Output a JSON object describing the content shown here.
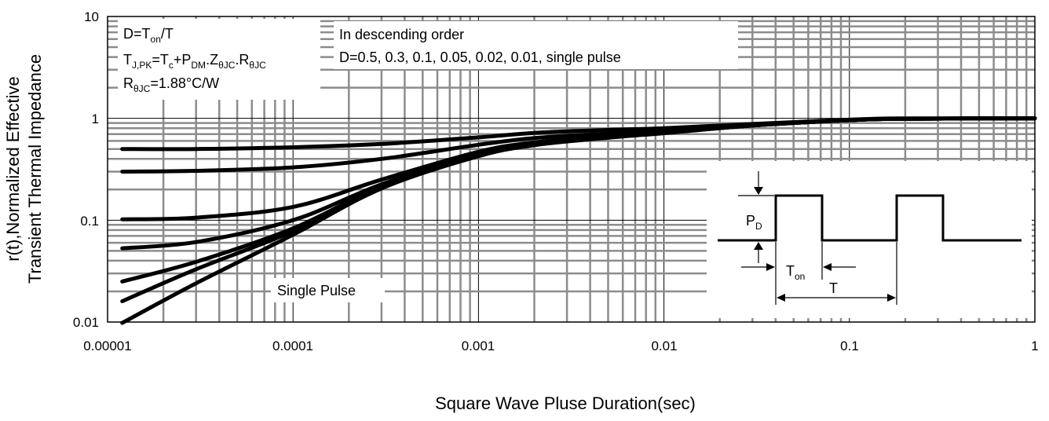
{
  "chart_data": {
    "type": "line",
    "x_scale": "log",
    "y_scale": "log",
    "xlim": [
      1e-05,
      1
    ],
    "ylim": [
      0.01,
      10
    ],
    "x_ticks": [
      "0.00001",
      "0.0001",
      "0.001",
      "0.01",
      "0.1",
      "1"
    ],
    "y_ticks": [
      "0.01",
      "0.1",
      "1",
      "10"
    ],
    "xlabel": "Square Wave Pluse Duration(sec)",
    "ylabel_line1": "r(t),Normalized Effective",
    "ylabel_line2": "Transient Thermal Impedance",
    "grid": true,
    "series": [
      {
        "duty": 0.5,
        "points": [
          [
            1.2e-05,
            0.5
          ],
          [
            3e-05,
            0.5
          ],
          [
            0.0001,
            0.52
          ],
          [
            0.0003,
            0.56
          ],
          [
            0.001,
            0.65
          ],
          [
            0.002,
            0.72
          ],
          [
            0.005,
            0.77
          ],
          [
            0.01,
            0.8
          ],
          [
            0.03,
            0.88
          ],
          [
            0.1,
            0.97
          ],
          [
            0.2,
            1.0
          ],
          [
            1,
            1.0
          ]
        ]
      },
      {
        "duty": 0.3,
        "points": [
          [
            1.2e-05,
            0.3
          ],
          [
            3e-05,
            0.305
          ],
          [
            0.0001,
            0.33
          ],
          [
            0.0003,
            0.4
          ],
          [
            0.001,
            0.55
          ],
          [
            0.002,
            0.64
          ],
          [
            0.005,
            0.71
          ],
          [
            0.01,
            0.76
          ],
          [
            0.03,
            0.86
          ],
          [
            0.1,
            0.96
          ],
          [
            0.2,
            0.99
          ],
          [
            1,
            1.0
          ]
        ]
      },
      {
        "duty": 0.1,
        "points": [
          [
            1.2e-05,
            0.102
          ],
          [
            3e-05,
            0.106
          ],
          [
            0.0001,
            0.135
          ],
          [
            0.0003,
            0.25
          ],
          [
            0.001,
            0.47
          ],
          [
            0.002,
            0.58
          ],
          [
            0.005,
            0.67
          ],
          [
            0.01,
            0.73
          ],
          [
            0.03,
            0.85
          ],
          [
            0.1,
            0.96
          ],
          [
            0.2,
            0.99
          ],
          [
            1,
            1.0
          ]
        ]
      },
      {
        "duty": 0.05,
        "points": [
          [
            1.2e-05,
            0.053
          ],
          [
            3e-05,
            0.061
          ],
          [
            0.0001,
            0.1
          ],
          [
            0.0003,
            0.225
          ],
          [
            0.001,
            0.45
          ],
          [
            0.002,
            0.57
          ],
          [
            0.005,
            0.66
          ],
          [
            0.01,
            0.72
          ],
          [
            0.03,
            0.85
          ],
          [
            0.1,
            0.96
          ],
          [
            0.2,
            0.99
          ],
          [
            1,
            1.0
          ]
        ]
      },
      {
        "duty": 0.02,
        "points": [
          [
            1.2e-05,
            0.025
          ],
          [
            3e-05,
            0.039
          ],
          [
            0.0001,
            0.083
          ],
          [
            0.0003,
            0.215
          ],
          [
            0.001,
            0.44
          ],
          [
            0.002,
            0.56
          ],
          [
            0.005,
            0.655
          ],
          [
            0.01,
            0.72
          ],
          [
            0.03,
            0.85
          ],
          [
            0.1,
            0.96
          ],
          [
            0.2,
            0.99
          ],
          [
            1,
            1.0
          ]
        ]
      },
      {
        "duty": 0.01,
        "points": [
          [
            1.2e-05,
            0.016
          ],
          [
            3e-05,
            0.033
          ],
          [
            0.0001,
            0.078
          ],
          [
            0.0003,
            0.21
          ],
          [
            0.001,
            0.43
          ],
          [
            0.002,
            0.55
          ],
          [
            0.005,
            0.65
          ],
          [
            0.01,
            0.72
          ],
          [
            0.03,
            0.85
          ],
          [
            0.1,
            0.96
          ],
          [
            0.2,
            0.99
          ],
          [
            1,
            1.0
          ]
        ]
      },
      {
        "duty": "single",
        "points": [
          [
            1.2e-05,
            0.0098
          ],
          [
            3e-05,
            0.024
          ],
          [
            0.0001,
            0.072
          ],
          [
            0.0003,
            0.205
          ],
          [
            0.001,
            0.425
          ],
          [
            0.002,
            0.545
          ],
          [
            0.005,
            0.645
          ],
          [
            0.01,
            0.715
          ],
          [
            0.03,
            0.85
          ],
          [
            0.1,
            0.96
          ],
          [
            0.2,
            0.99
          ],
          [
            1,
            1.0
          ]
        ]
      }
    ],
    "annotations": {
      "formula_duty": "D=T/T",
      "formula_tj": "T=T+P.Z.R",
      "rth_value": "R=1.88°C/W",
      "order_title": "In descending order",
      "order_list": "D=0.5, 0.3, 0.1, 0.05, 0.02, 0.01, single pulse",
      "single_pulse": "Single Pulse",
      "inset_pd": "PD",
      "inset_ton": "Ton",
      "inset_t": "T"
    }
  }
}
